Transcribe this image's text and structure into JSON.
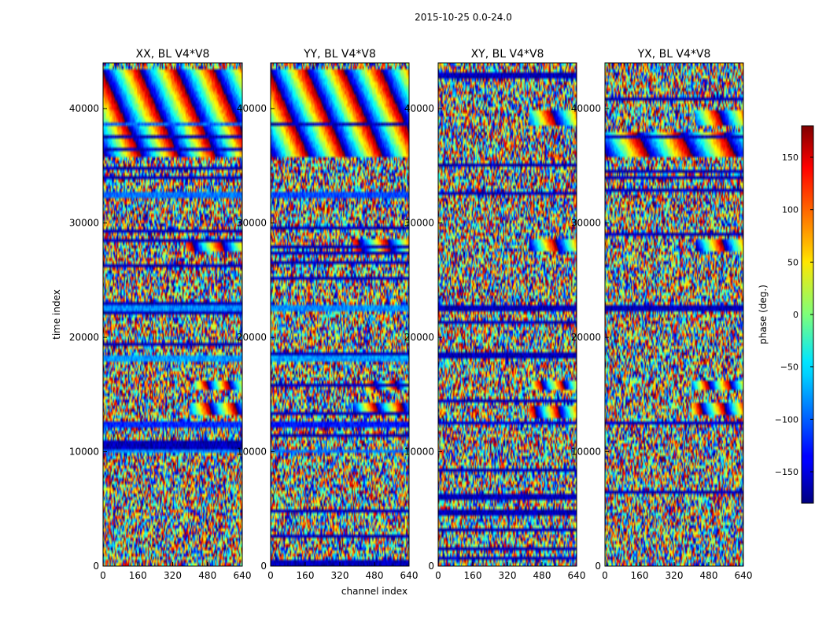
{
  "chart_data": {
    "type": "heatmap",
    "suptitle": "2015-10-25 0.0-24.0",
    "colorscale": "jet",
    "xlabel": "channel index",
    "ylabel": "time index",
    "xlim": [
      0,
      640
    ],
    "ylim": [
      0,
      44000
    ],
    "xticks": [
      0,
      160,
      320,
      480,
      640
    ],
    "yticks": [
      0,
      10000,
      20000,
      30000,
      40000
    ],
    "panels": [
      {
        "title": "XX, BL V4*V8",
        "seed": 11,
        "bands": [
          [
            12000,
            12700,
            -120
          ],
          [
            18000,
            18400,
            -80
          ],
          [
            22300,
            22800,
            -85
          ],
          [
            32300,
            32700,
            -95
          ],
          [
            38400,
            38900,
            -100
          ],
          [
            9800,
            10200,
            -90
          ]
        ],
        "fringes": [
          [
            35800,
            43500,
            0,
            0.35
          ],
          [
            13200,
            14200,
            400,
            0.5
          ],
          [
            15300,
            16300,
            420,
            0.6
          ],
          [
            27600,
            28600,
            380,
            0.45
          ]
        ],
        "noise": 0.85
      },
      {
        "title": "YY, BL V4*V8",
        "seed": 23,
        "bands": [
          [
            12000,
            12700,
            -130
          ],
          [
            18000,
            18400,
            -80
          ],
          [
            22300,
            22800,
            -85
          ],
          [
            32300,
            32700,
            -110
          ],
          [
            38400,
            38900,
            -110
          ],
          [
            9800,
            10200,
            -95
          ]
        ],
        "fringes": [
          [
            35800,
            43500,
            0,
            0.35
          ],
          [
            13200,
            14200,
            380,
            0.5
          ],
          [
            15300,
            16300,
            440,
            0.6
          ],
          [
            27600,
            28600,
            380,
            0.45
          ]
        ],
        "noise": 0.85
      },
      {
        "title": "XY, BL V4*V8",
        "seed": 37,
        "bands": [
          [
            12300,
            12700,
            -150
          ],
          [
            22400,
            22900,
            -160
          ]
        ],
        "fringes": [
          [
            13000,
            14000,
            420,
            0.55
          ],
          [
            15500,
            16300,
            430,
            0.6
          ],
          [
            27600,
            28500,
            420,
            0.45
          ],
          [
            38500,
            39800,
            420,
            0.4
          ]
        ],
        "noise": 0.95
      },
      {
        "title": "YX, BL V4*V8",
        "seed": 53,
        "bands": [
          [
            12300,
            12700,
            -155
          ],
          [
            22400,
            22900,
            -160
          ]
        ],
        "fringes": [
          [
            13300,
            14200,
            400,
            0.55
          ],
          [
            15500,
            16300,
            400,
            0.6
          ],
          [
            27600,
            28500,
            420,
            0.45
          ],
          [
            38500,
            39800,
            420,
            0.4
          ],
          [
            35800,
            38000,
            0,
            0.3
          ]
        ],
        "noise": 0.93
      }
    ],
    "colorbar": {
      "label": "phase (deg.)",
      "range": [
        -180,
        180
      ],
      "ticks": [
        -150,
        -100,
        -50,
        0,
        50,
        100,
        150
      ],
      "tick_labels": [
        "−150",
        "−100",
        "−50",
        "0",
        "50",
        "100",
        "150"
      ]
    }
  }
}
